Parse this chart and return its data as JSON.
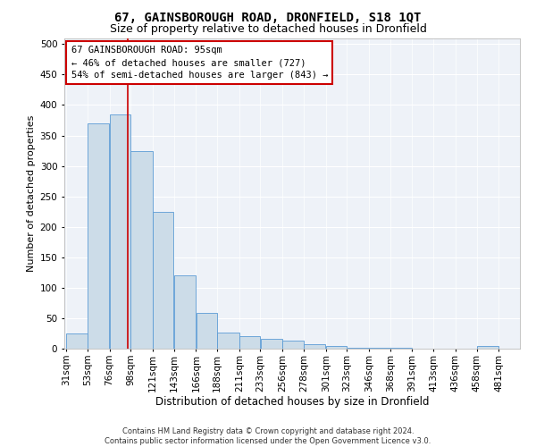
{
  "title": "67, GAINSBOROUGH ROAD, DRONFIELD, S18 1QT",
  "subtitle": "Size of property relative to detached houses in Dronfield",
  "xlabel": "Distribution of detached houses by size in Dronfield",
  "ylabel": "Number of detached properties",
  "footer_line1": "Contains HM Land Registry data © Crown copyright and database right 2024.",
  "footer_line2": "Contains public sector information licensed under the Open Government Licence v3.0.",
  "bar_edges": [
    31,
    53,
    76,
    98,
    121,
    143,
    166,
    188,
    211,
    233,
    256,
    278,
    301,
    323,
    346,
    368,
    391,
    413,
    436,
    458,
    481
  ],
  "bar_heights": [
    25,
    370,
    385,
    325,
    225,
    120,
    58,
    26,
    20,
    16,
    13,
    7,
    5,
    2,
    1,
    1,
    0,
    0,
    0,
    4
  ],
  "bar_color": "#ccdce8",
  "bar_edgecolor": "#5b9bd5",
  "vline_x": 95,
  "vline_color": "#cc0000",
  "annotation_line1": "67 GAINSBOROUGH ROAD: 95sqm",
  "annotation_line2": "← 46% of detached houses are smaller (727)",
  "annotation_line3": "54% of semi-detached houses are larger (843) →",
  "annotation_box_color": "#cc0000",
  "ylim": [
    0,
    510
  ],
  "yticks": [
    0,
    50,
    100,
    150,
    200,
    250,
    300,
    350,
    400,
    450,
    500
  ],
  "bg_color": "#eef2f8",
  "grid_color": "#ffffff",
  "fig_bg_color": "#ffffff",
  "title_fontsize": 10,
  "subtitle_fontsize": 9,
  "xlabel_fontsize": 8.5,
  "ylabel_fontsize": 8,
  "tick_fontsize": 7.5,
  "annotation_fontsize": 7.5,
  "footer_fontsize": 6
}
